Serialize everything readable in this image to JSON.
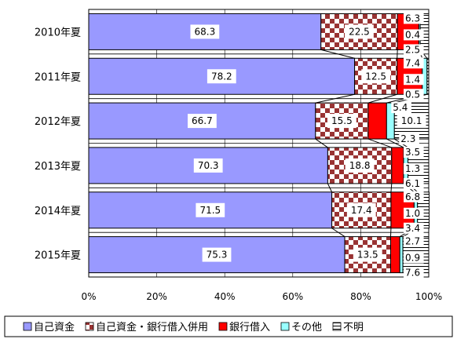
{
  "chart_data": {
    "type": "bar",
    "orientation": "horizontal",
    "stacked": true,
    "normalized_percent": true,
    "title": "",
    "xlabel": "",
    "ylabel": "",
    "xlim": [
      0,
      100
    ],
    "x_ticks": [
      "0%",
      "20%",
      "40%",
      "60%",
      "80%",
      "100%"
    ],
    "grid": true,
    "legend_position": "bottom",
    "categories": [
      "2010年夏",
      "2011年夏",
      "2012年夏",
      "2013年夏",
      "2014年夏",
      "2015年夏"
    ],
    "series": [
      {
        "name": "自己資金",
        "color": "#9999ff",
        "pattern": "solid",
        "values": [
          68.3,
          78.2,
          66.7,
          70.3,
          71.5,
          75.3
        ]
      },
      {
        "name": "自己資金・銀行借入併用",
        "color": "#993333",
        "pattern": "checker",
        "values": [
          22.5,
          12.5,
          15.5,
          18.8,
          17.4,
          13.5
        ]
      },
      {
        "name": "銀行借入",
        "color": "#ff0000",
        "pattern": "solid",
        "values": [
          6.3,
          7.4,
          5.4,
          3.5,
          6.8,
          2.7
        ]
      },
      {
        "name": "その他",
        "color": "#99ffff",
        "pattern": "solid",
        "values": [
          0.4,
          1.4,
          2.3,
          1.3,
          1.0,
          0.9
        ]
      },
      {
        "name": "不明",
        "color": "#ffffff",
        "pattern": "hlines",
        "values": [
          2.5,
          0.5,
          10.1,
          6.1,
          3.4,
          7.6
        ]
      }
    ]
  }
}
